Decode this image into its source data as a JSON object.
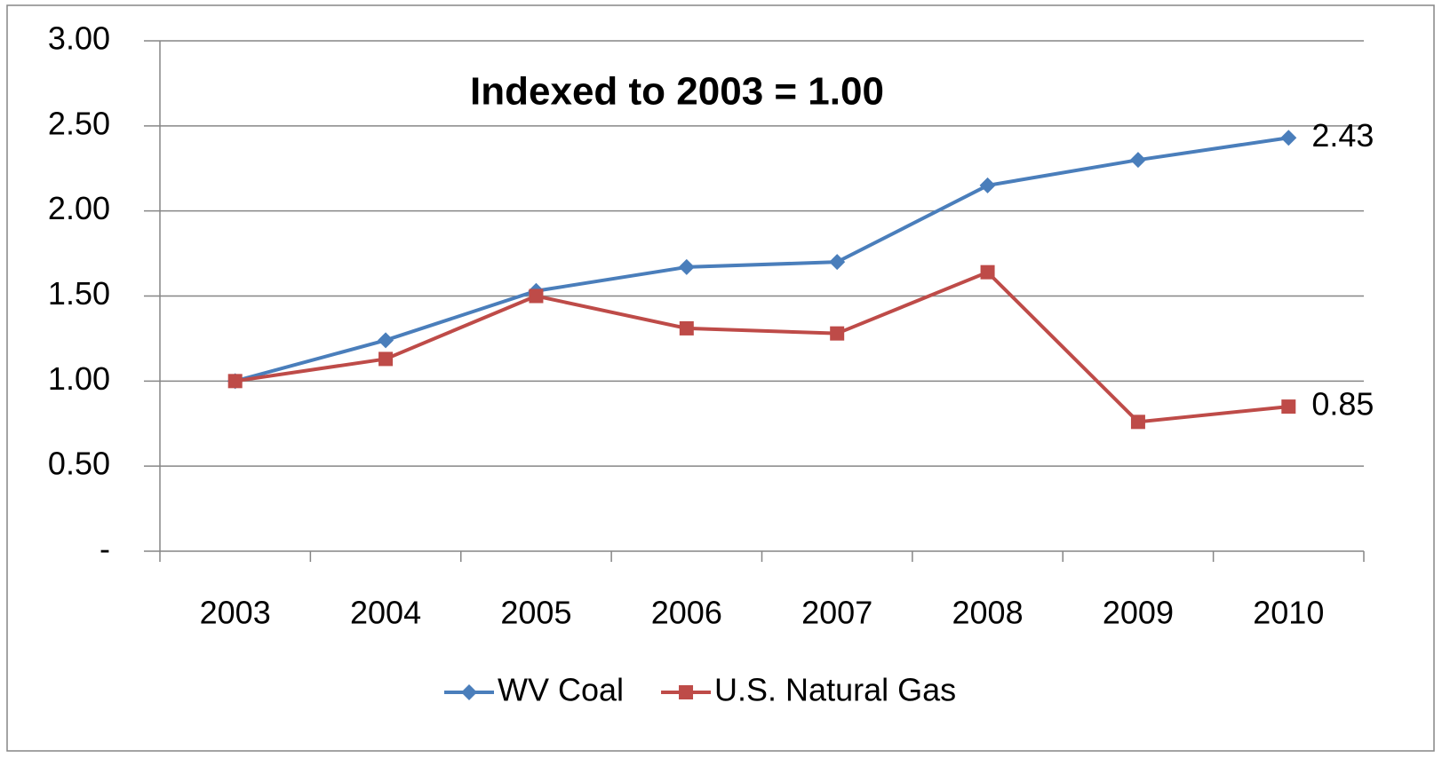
{
  "chart_data": {
    "type": "line",
    "title": "Indexed to 2003 = 1.00",
    "categories": [
      "2003",
      "2004",
      "2005",
      "2006",
      "2007",
      "2008",
      "2009",
      "2010"
    ],
    "series": [
      {
        "name": "WV Coal",
        "color": "#4a7ebb",
        "marker": "diamond",
        "data_labels": "last",
        "values": [
          1.0,
          1.24,
          1.53,
          1.67,
          1.7,
          2.15,
          2.3,
          2.43
        ]
      },
      {
        "name": "U.S. Natural Gas",
        "color": "#be4b48",
        "marker": "square",
        "data_labels": "last",
        "values": [
          1.0,
          1.13,
          1.5,
          1.31,
          1.28,
          1.64,
          0.76,
          0.85
        ]
      }
    ],
    "ylim": [
      0,
      3
    ],
    "yticks": [
      {
        "value": 0,
        "label": "-"
      },
      {
        "value": 0.5,
        "label": "0.50"
      },
      {
        "value": 1,
        "label": "1.00"
      },
      {
        "value": 1.5,
        "label": "1.50"
      },
      {
        "value": 2,
        "label": "2.00"
      },
      {
        "value": 2.5,
        "label": "2.50"
      },
      {
        "value": 3,
        "label": "3.00"
      }
    ],
    "grid": true,
    "legend": "bottom"
  }
}
